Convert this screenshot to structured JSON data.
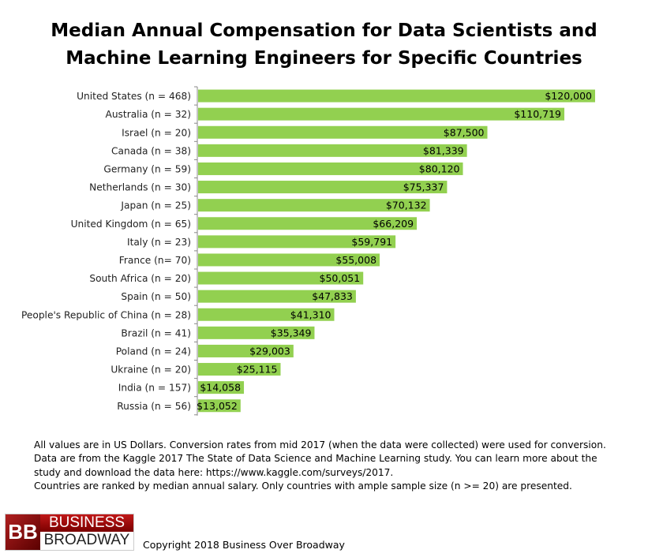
{
  "chart_data": {
    "type": "bar",
    "orientation": "horizontal",
    "title": [
      "Median Annual Compensation for Data Scientists and",
      "Machine Learning Engineers for Specific Countries"
    ],
    "categories": [
      "United States (n =  468)",
      "Australia (n =  32)",
      "Israel (n =  20)",
      "Canada (n = 38)",
      "Germany (n =  59)",
      "Netherlands (n = 30)",
      "Japan (n =  25)",
      "United Kingdom (n =  65)",
      "Italy (n =  23)",
      "France (n=  70)",
      "South Africa (n = 20)",
      "Spain (n =  50)",
      "People's Republic of China (n = 28)",
      "Brazil (n =  41)",
      "Poland (n =  24)",
      "Ukraine (n = 20)",
      "India (n =  157)",
      "Russia (n =  56)"
    ],
    "values": [
      120000,
      110719,
      87500,
      81339,
      80120,
      75337,
      70132,
      66209,
      59791,
      55008,
      50051,
      47833,
      41310,
      35349,
      29003,
      25115,
      14058,
      13052
    ],
    "data_labels": [
      "$120,000",
      "$110,719",
      "$87,500",
      "$81,339",
      "$80,120",
      "$75,337",
      "$70,132",
      "$66,209",
      "$59,791",
      "$55,008",
      "$50,051",
      "$47,833",
      "$41,310",
      "$35,349",
      "$29,003",
      "$25,115",
      "$14,058",
      "$13,052"
    ],
    "xlim": [
      0,
      120000
    ],
    "bar_color": "#92d050",
    "grid": false,
    "legend": "none"
  },
  "notes": [
    "All values are in US Dollars. Conversion rates from mid 2017 (when the data were collected) were used for conversion.",
    "Data are from the Kaggle 2017 The State of Data Science and Machine Learning study. You can learn more about the study and download the data here: https://www.kaggle.com/surveys/2017.",
    "Countries are ranked by median annual salary. Only countries with ample sample size (n >= 20) are presented."
  ],
  "logo": {
    "mark": "BB",
    "line1": "BUSINESS",
    "line2": "BROADWAY"
  },
  "copyright": "Copyright 2018 Business Over Broadway"
}
